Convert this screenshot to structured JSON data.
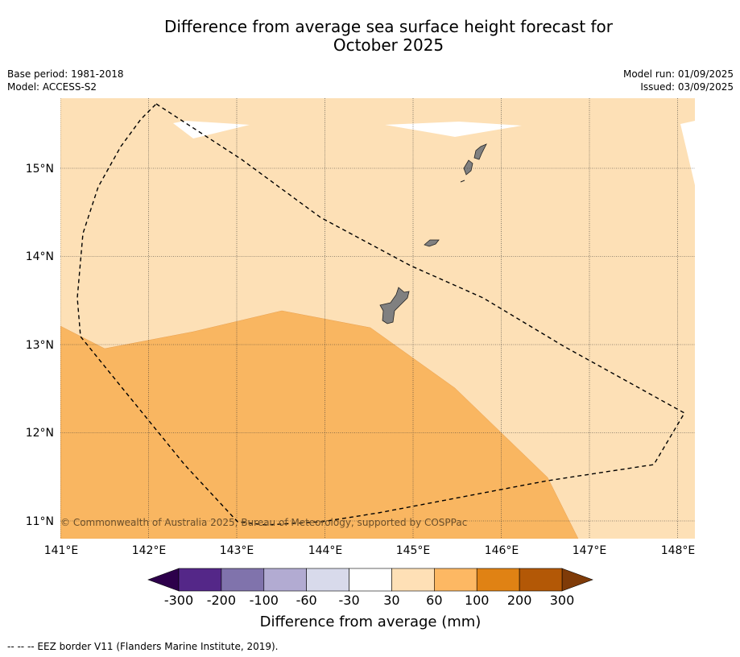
{
  "title_line1": "Difference from average sea surface height forecast for",
  "title_line2": "October 2025",
  "base_period": "Base period: 1981-2018",
  "model": "Model: ACCESS-S2",
  "model_run": "Model run: 01/09/2025",
  "issued": "Issued: 03/09/2025",
  "copyright": "© Commonwealth of Australia 2025, Bureau of Meteorology, supported by COSPPac",
  "lon_ticks": [
    "141°E",
    "142°E",
    "143°E",
    "144°E",
    "145°E",
    "146°E",
    "147°E",
    "148°E"
  ],
  "lat_ticks": [
    "15°N",
    "14°N",
    "13°N",
    "12°N",
    "11°N"
  ],
  "colorbar": {
    "title": "Difference from average (mm)",
    "labels": [
      "-300",
      "-200",
      "-100",
      "-60",
      "-30",
      "30",
      "60",
      "100",
      "200",
      "300"
    ],
    "colors": [
      "#542788",
      "#8073ac",
      "#b2abd2",
      "#d8daeb",
      "#ffffff",
      "#fee0b6",
      "#fdb863",
      "#e08214",
      "#b35806"
    ],
    "under_color": "#2d004b",
    "over_color": "#7f3b08"
  },
  "footer": "--  --  -- EEZ border V11 (Flanders Marine Institute, 2019)."
}
